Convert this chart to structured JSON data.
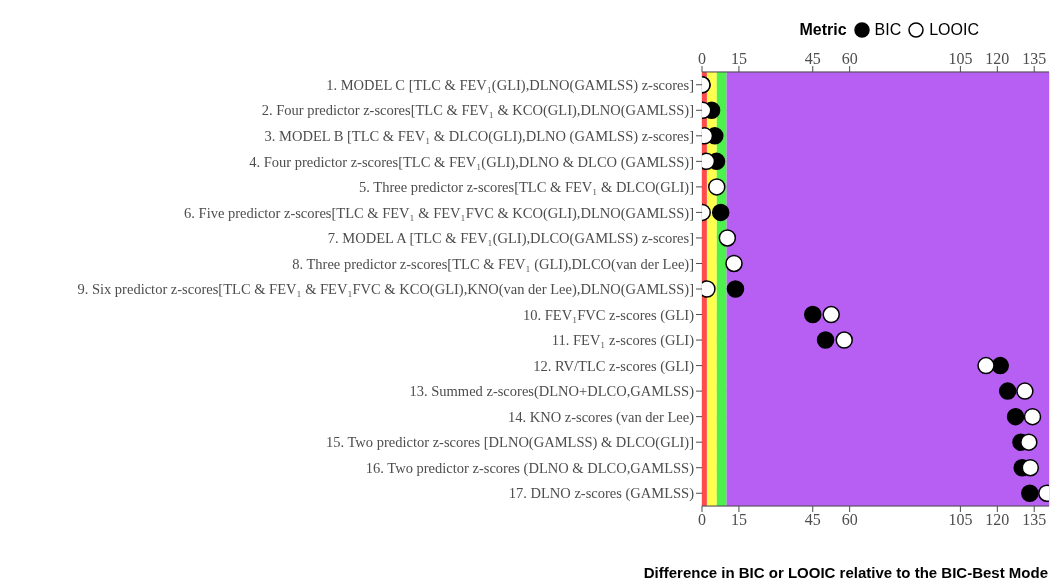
{
  "chart_data": {
    "type": "scatter",
    "orientation": "horizontal",
    "xlabel": "Difference in BIC or LOOIC relative to the BIC-Best Mode",
    "legend_title": "Metric",
    "legend": "top right",
    "marker": "circle",
    "grid": true,
    "categories": [
      "1. MODEL C [TLC & FEV₁(GLI),DLNO(GAMLSS) z-scores]",
      "2. Four predictor z-scores[TLC & FEV₁ & KCO(GLI),DLNO(GAMLSS)]",
      "3. MODEL B [TLC & FEV₁ & DLCO(GLI),DLNO (GAMLSS) z-scores]",
      "4. Four predictor z-scores[TLC & FEV₁(GLI),DLNO & DLCO (GAMLSS)]",
      "5. Three predictor z-scores[TLC & FEV₁ & DLCO(GLI)]",
      "6. Five predictor z-scores[TLC & FEV₁ & FEV₁FVC & KCO(GLI),DLNO(GAMLSS)]",
      "7. MODEL A [TLC & FEV₁(GLI),DLCO(GAMLSS) z-scores]",
      "8. Three predictor z-scores[TLC & FEV₁ (GLI),DLCO(van der Lee)]",
      "9. Six predictor z-scores[TLC & FEV₁ & FEV₁FVC & KCO(GLI),KNO(van der Lee),DLNO(GAMLSS)]",
      "10. FEV₁FVC z-scores (GLI)",
      "11. FEV₁ z-scores (GLI)",
      "12. RV/TLC z-scores (GLI)",
      "13. Summed z-scores(DLNO+DLCO,GAMLSS)",
      "14. KNO z-scores (van der Lee)",
      "15. Two predictor z-scores [DLNO(GAMLSS) & DLCO(GLI)]",
      "16. Two predictor z-scores (DLNO & DLCO,GAMLSS)",
      "17. DLNO z-scores (GAMLSS)"
    ],
    "series": [
      {
        "name": "BIC",
        "color": "#000000",
        "values": [
          0,
          3.9,
          5.2,
          5.9,
          null,
          7.6,
          null,
          null,
          13.6,
          45.0,
          50.2,
          121.2,
          124.2,
          127.4,
          129.6,
          130.1,
          133.2
        ]
      },
      {
        "name": "LOOIC",
        "color": "#ffffff",
        "values": [
          0,
          0.3,
          1.0,
          1.8,
          6.0,
          0.1,
          10.3,
          13.0,
          2.0,
          52.5,
          57.8,
          115.4,
          131.2,
          134.3,
          132.8,
          133.4,
          140.1
        ]
      }
    ],
    "xlim": [
      0,
      141
    ],
    "xticks": [
      0,
      15,
      45,
      60,
      105,
      120,
      135
    ],
    "x2lim": [
      0,
      141
    ],
    "x2ticks": [
      0,
      15,
      45,
      60,
      105,
      120,
      135
    ],
    "bands": [
      {
        "axis": "x",
        "from": 0,
        "to": 2,
        "color": "#ff4b4b"
      },
      {
        "axis": "x",
        "from": 2,
        "to": 6,
        "color": "#ffff4d"
      },
      {
        "axis": "x",
        "from": 6,
        "to": 10,
        "color": "#4ef04e"
      },
      {
        "axis": "x",
        "from": 10,
        "to": 141,
        "color": "#b65ff2"
      }
    ]
  }
}
